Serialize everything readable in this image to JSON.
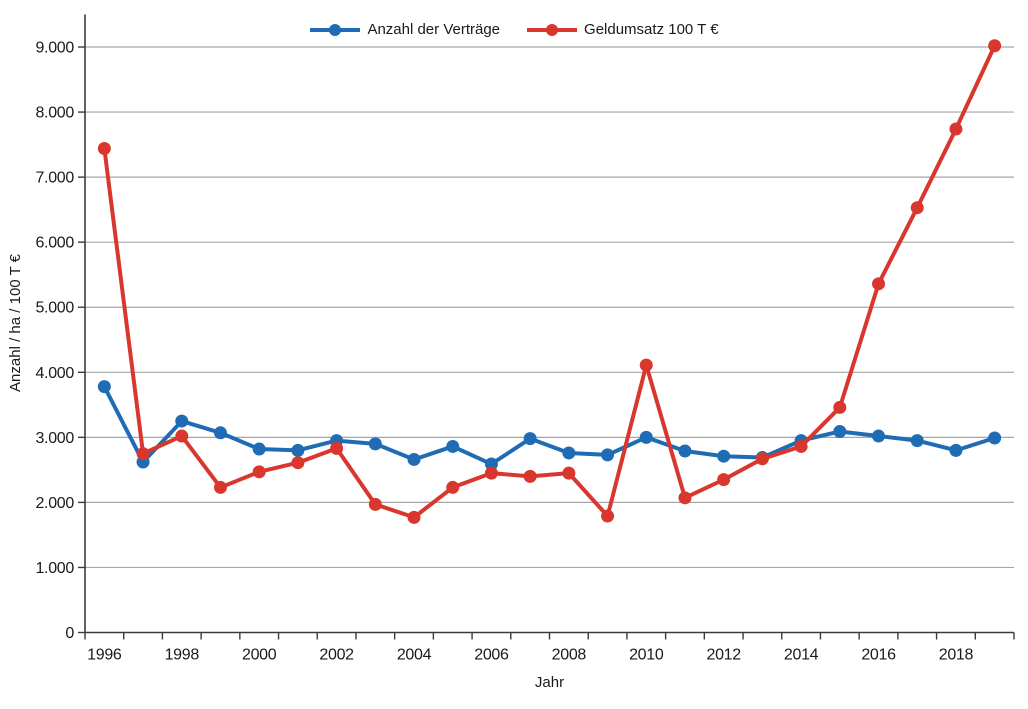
{
  "chart_data": {
    "type": "line",
    "title": "",
    "xlabel": "Jahr",
    "ylabel": "Anzahl / ha / 100 T €",
    "x": [
      1996,
      1997,
      1998,
      1999,
      2000,
      2001,
      2002,
      2003,
      2004,
      2005,
      2006,
      2007,
      2008,
      2009,
      2010,
      2011,
      2012,
      2013,
      2014,
      2015,
      2016,
      2017,
      2018,
      2019
    ],
    "x_tick_labels": [
      "1996",
      "1998",
      "2000",
      "2002",
      "2004",
      "2006",
      "2008",
      "2010",
      "2012",
      "2014",
      "2016",
      "2018"
    ],
    "x_label_every": 2,
    "y_ticks": [
      0,
      1000,
      2000,
      3000,
      4000,
      5000,
      6000,
      7000,
      8000,
      9000
    ],
    "y_tick_labels": [
      "0",
      "1.000",
      "2.000",
      "3.000",
      "4.000",
      "5.000",
      "6.000",
      "7.000",
      "8.000",
      "9.000"
    ],
    "ylim": [
      0,
      9500
    ],
    "grid": "horizontal-major",
    "legend_position": "top-center",
    "series": [
      {
        "name": "Anzahl der Verträge",
        "color": "#1F6CB4",
        "values": [
          3780,
          2620,
          3250,
          3070,
          2820,
          2800,
          2950,
          2900,
          2660,
          2860,
          2590,
          2980,
          2760,
          2730,
          3000,
          2790,
          2710,
          2690,
          2950,
          3090,
          3020,
          2950,
          2800,
          2990
        ]
      },
      {
        "name": "Geldumsatz 100 T €",
        "color": "#D9372D",
        "values": [
          7440,
          2750,
          3020,
          2230,
          2470,
          2610,
          2830,
          1970,
          1770,
          2230,
          2450,
          2400,
          2450,
          1790,
          4110,
          2070,
          2350,
          2670,
          2860,
          3460,
          5360,
          6530,
          7740,
          9020
        ]
      }
    ],
    "colors": {
      "gridline": "#A6A6A6",
      "axis_line": "#3B3B3B",
      "text": "#1A1A1A",
      "background": "#FFFFFF"
    }
  }
}
